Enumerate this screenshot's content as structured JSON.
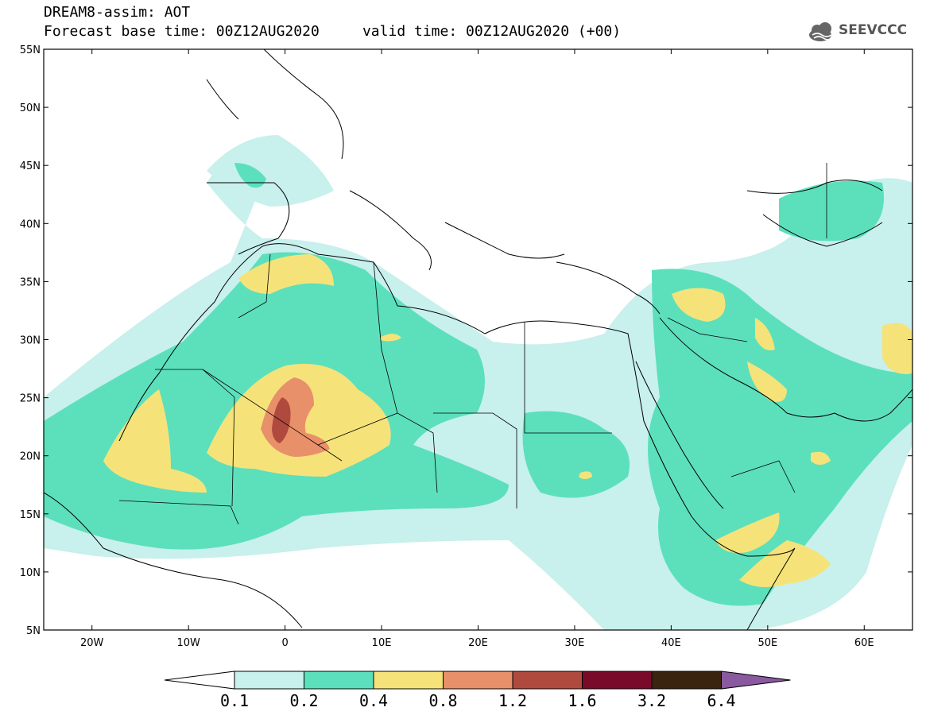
{
  "header": {
    "title_line1": "DREAM8-assim: AOT",
    "title_line2": "Forecast base time: 00Z12AUG2020     valid time: 00Z12AUG2020 (+00)",
    "logo_text": "SEEVCCC",
    "logo_icon": "cloud-icon"
  },
  "map": {
    "lon_range": [
      -25,
      65
    ],
    "lat_range": [
      5,
      55
    ],
    "lon_ticks": [
      {
        "value": -20,
        "label": "20W"
      },
      {
        "value": -10,
        "label": "10W"
      },
      {
        "value": 0,
        "label": "0"
      },
      {
        "value": 10,
        "label": "10E"
      },
      {
        "value": 20,
        "label": "20E"
      },
      {
        "value": 30,
        "label": "30E"
      },
      {
        "value": 40,
        "label": "40E"
      },
      {
        "value": 50,
        "label": "50E"
      },
      {
        "value": 60,
        "label": "60E"
      }
    ],
    "lat_ticks": [
      {
        "value": 5,
        "label": "5N"
      },
      {
        "value": 10,
        "label": "10N"
      },
      {
        "value": 15,
        "label": "15N"
      },
      {
        "value": 20,
        "label": "20N"
      },
      {
        "value": 25,
        "label": "25N"
      },
      {
        "value": 30,
        "label": "30N"
      },
      {
        "value": 35,
        "label": "35N"
      },
      {
        "value": 40,
        "label": "40N"
      },
      {
        "value": 45,
        "label": "45N"
      },
      {
        "value": 50,
        "label": "50N"
      },
      {
        "value": 55,
        "label": "55N"
      }
    ],
    "variable": "Aerosol Optical Thickness",
    "max_region": "central Sahara near 0E 22N"
  },
  "colorbar": {
    "levels": [
      "0.1",
      "0.2",
      "0.4",
      "0.8",
      "1.2",
      "1.6",
      "3.2",
      "6.4"
    ],
    "colors": [
      "#c8f0ec",
      "#5ce0bc",
      "#f5e37a",
      "#e8906a",
      "#b04a3e",
      "#7a0a2a",
      "#3a2410"
    ],
    "low_arrow_color": "#ffffff",
    "high_arrow_color": "#8a5aa0"
  }
}
